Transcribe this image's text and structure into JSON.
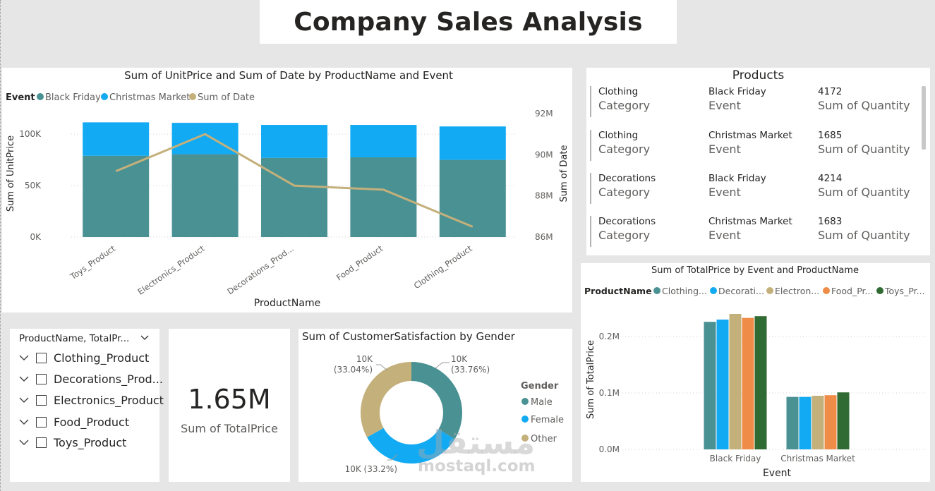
{
  "dashboard": {
    "title": "Company Sales Analysis"
  },
  "colors": {
    "teal": "#4a9193",
    "blue": "#12aaf2",
    "tan": "#c4b07b",
    "orange": "#ef8c48",
    "darkgreen": "#2f6b33"
  },
  "combo_chart": {
    "title": "Sum of UnitPrice and Sum of Date by ProductName and Event",
    "legend_title": "Event",
    "legend_items": [
      "Black Friday",
      "Christmas Market",
      "Sum of Date"
    ],
    "y_left_label": "Sum of UnitPrice",
    "y_right_label": "Sum of Date",
    "x_label": "ProductName",
    "y_left_ticks": [
      "0K",
      "50K",
      "100K"
    ],
    "y_right_ticks": [
      "86M",
      "88M",
      "90M",
      "92M"
    ],
    "categories": [
      "Toys_Product",
      "Electronics_Product",
      "Decorations_Prod...",
      "Food_Product",
      "Clothing_Product"
    ]
  },
  "products_card": {
    "title": "Products",
    "rows": [
      {
        "category": "Clothing",
        "category_label": "Category",
        "event": "Black Friday",
        "event_label": "Event",
        "quantity": "4172",
        "quantity_label": "Sum of Quantity"
      },
      {
        "category": "Clothing",
        "category_label": "Category",
        "event": "Christmas Market",
        "event_label": "Event",
        "quantity": "1685",
        "quantity_label": "Sum of Quantity"
      },
      {
        "category": "Decorations",
        "category_label": "Category",
        "event": "Black Friday",
        "event_label": "Event",
        "quantity": "4214",
        "quantity_label": "Sum of Quantity"
      },
      {
        "category": "Decorations",
        "category_label": "Category",
        "event": "Christmas Market",
        "event_label": "Event",
        "quantity": "1683",
        "quantity_label": "Sum of Quantity"
      }
    ]
  },
  "slicer": {
    "header": "ProductName, TotalPr...",
    "items": [
      "Clothing_Product",
      "Decorations_Prod...",
      "Electronics_Product",
      "Food_Product",
      "Toys_Product"
    ]
  },
  "kpi_card": {
    "value": "1.65M",
    "label": "Sum of TotalPrice"
  },
  "donut_chart": {
    "title": "Sum of CustomerSatisfaction by Gender",
    "legend_title": "Gender",
    "legend_items": [
      "Male",
      "Female",
      "Other"
    ],
    "label_male_value": "10K",
    "label_male_pct": "(33.76%)",
    "label_female": "10K (33.2%)",
    "label_other_value": "10K",
    "label_other_pct": "(33.04%)"
  },
  "clustered_chart": {
    "title": "Sum of TotalPrice by Event and ProductName",
    "legend_title": "ProductName",
    "legend_items": [
      "Clothing...",
      "Decorati...",
      "Electron...",
      "Food_Pr...",
      "Toys_Pr..."
    ],
    "y_label": "Sum of TotalPrice",
    "x_label": "Event",
    "y_ticks": [
      "0.0M",
      "0.1M",
      "0.2M"
    ],
    "categories": [
      "Black Friday",
      "Christmas Market"
    ]
  },
  "watermark": {
    "arabic": "مستقل",
    "latin": "mostaql.com"
  },
  "chart_data": [
    {
      "type": "bar",
      "title": "Sum of UnitPrice and Sum of Date by ProductName and Event",
      "categories": [
        "Toys_Product",
        "Electronics_Product",
        "Decorations_Prod...",
        "Food_Product",
        "Clothing_Product"
      ],
      "series": [
        {
          "name": "Black Friday",
          "values": [
            79000,
            80500,
            77000,
            77500,
            75000
          ]
        },
        {
          "name": "Christmas Market",
          "values": [
            32500,
            30500,
            32000,
            31500,
            32500
          ]
        }
      ],
      "line_series": {
        "name": "Sum of Date",
        "values": [
          89.2,
          91.0,
          88.5,
          88.3,
          86.5
        ]
      },
      "stacked": true,
      "xlabel": "ProductName",
      "ylabel": "Sum of UnitPrice",
      "y2label": "Sum of Date",
      "ylim": [
        0,
        120000
      ],
      "y2lim": [
        86,
        92
      ],
      "legend": "top-left"
    },
    {
      "type": "pie",
      "title": "Sum of CustomerSatisfaction by Gender",
      "categories": [
        "Male",
        "Female",
        "Other"
      ],
      "values": [
        33.76,
        33.2,
        33.04
      ],
      "legend": "right"
    },
    {
      "type": "bar",
      "title": "Sum of TotalPrice by Event and ProductName",
      "categories": [
        "Black Friday",
        "Christmas Market"
      ],
      "series": [
        {
          "name": "Clothing...",
          "values": [
            0.226,
            0.093
          ]
        },
        {
          "name": "Decorati...",
          "values": [
            0.23,
            0.093
          ]
        },
        {
          "name": "Electron...",
          "values": [
            0.24,
            0.095
          ]
        },
        {
          "name": "Food_Pr...",
          "values": [
            0.233,
            0.096
          ]
        },
        {
          "name": "Toys_Pr...",
          "values": [
            0.236,
            0.101
          ]
        }
      ],
      "xlabel": "Event",
      "ylabel": "Sum of TotalPrice",
      "ylim": [
        0,
        0.3
      ],
      "legend": "top-left"
    }
  ]
}
